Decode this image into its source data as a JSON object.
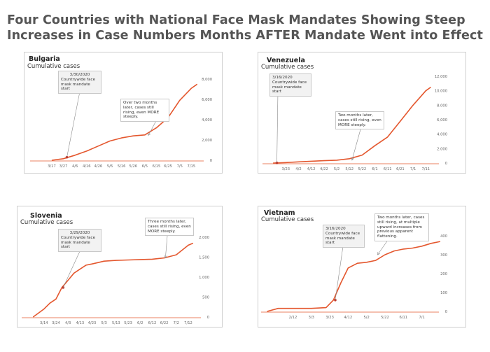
{
  "title": {
    "line1": "Four Countries with National Face Mask Mandates Showing Steep",
    "line2": "Increases in Case Numbers Months AFTER Mandate Went into Effect"
  },
  "colors": {
    "series": "#e4572e",
    "axis": "#e4572e",
    "pointer": "#888888",
    "title": "#555555"
  },
  "chart_data": [
    {
      "type": "line",
      "country": "Bulgaria",
      "subtitle": "Cumulative cases",
      "x_tick_labels": [
        "3/17",
        "3/27",
        "4/6",
        "4/16",
        "4/26",
        "5/6",
        "5/16",
        "5/26",
        "6/5",
        "6/15",
        "6/25",
        "7/5",
        "7/15"
      ],
      "y_tick_labels": [
        "0",
        "2,000",
        "4,000",
        "6,000",
        "8,000"
      ],
      "ylim": [
        0,
        8000
      ],
      "x": [
        0,
        1,
        2,
        3,
        4,
        5,
        6,
        7,
        8,
        9,
        10,
        11,
        12,
        12.5
      ],
      "values": [
        0,
        150,
        500,
        900,
        1400,
        1900,
        2200,
        2400,
        2500,
        3200,
        4200,
        5900,
        7100,
        7500
      ],
      "mandate_label_date": "3/30/2020",
      "mandate_label": "Countrywide face mask mandate start",
      "mandate_x": 1.3,
      "mandate_y": 300,
      "note": "Over two months later, cases still rising, even MORE steeply.",
      "note_x": 8.3,
      "note_y": 2450
    },
    {
      "type": "line",
      "country": "Venezuela",
      "subtitle": "Cumulative cases",
      "x_tick_labels": [
        "3/23",
        "4/2",
        "4/12",
        "4/22",
        "5/2",
        "5/12",
        "5/22",
        "6/1",
        "6/11",
        "6/21",
        "7/1",
        "7/11"
      ],
      "y_tick_labels": [
        "0",
        "2,000",
        "4,000",
        "6,000",
        "8,000",
        "10,000",
        "12,000"
      ],
      "ylim": [
        0,
        12000
      ],
      "x": [
        -1.0,
        0,
        1,
        2,
        3,
        4,
        5,
        6,
        7,
        8,
        9,
        10,
        11,
        11.4
      ],
      "values": [
        0,
        70,
        160,
        250,
        330,
        400,
        600,
        1100,
        2400,
        3600,
        5800,
        8000,
        10000,
        10500
      ],
      "mandate_label_date": "3/16/2020",
      "mandate_label": "Countrywide face mask mandate start",
      "mandate_x": -0.7,
      "mandate_y": 30,
      "note": "Two months later, cases still rising, even MORE steeply.",
      "note_x": 5.2,
      "note_y": 400
    },
    {
      "type": "line",
      "country": "Slovenia",
      "subtitle": "Cumulative cases",
      "x_tick_labels": [
        "3/14",
        "3/24",
        "4/3",
        "4/13",
        "4/23",
        "5/3",
        "5/13",
        "5/23",
        "6/2",
        "6/12",
        "6/22",
        "7/2",
        "7/12"
      ],
      "y_tick_labels": [
        "0",
        "500",
        "1,000",
        "1,500",
        "2,000"
      ],
      "ylim": [
        0,
        2000
      ],
      "x": [
        -0.9,
        0,
        0.5,
        1,
        1.5,
        2,
        2.5,
        3,
        3.5,
        4,
        5,
        6,
        7,
        8,
        9,
        10,
        11,
        12,
        12.4
      ],
      "values": [
        0,
        200,
        350,
        450,
        740,
        920,
        1100,
        1200,
        1300,
        1330,
        1400,
        1420,
        1430,
        1440,
        1450,
        1480,
        1560,
        1800,
        1850
      ],
      "mandate_label_date": "3/29/2020",
      "mandate_label": "Countrywide face mask mandate start",
      "mandate_x": 1.6,
      "mandate_y": 740,
      "note": "Three months later, cases still rising, even MORE steeply.",
      "note_x": 10.1,
      "note_y": 1480
    },
    {
      "type": "line",
      "country": "Vietnam",
      "subtitle": "Cumulative cases",
      "x_tick_labels": [
        "2/12",
        "3/3",
        "3/23",
        "4/12",
        "5/2",
        "5/22",
        "6/11",
        "7/1"
      ],
      "y_tick_labels": [
        "0",
        "100",
        "200",
        "300",
        "400"
      ],
      "ylim": [
        0,
        400
      ],
      "x": [
        -1.4,
        -0.8,
        0,
        1,
        1.8,
        2.2,
        2.6,
        3,
        3.5,
        4,
        4.5,
        5,
        5.5,
        6,
        6.5,
        7,
        7.5,
        8
      ],
      "values": [
        0,
        16,
        16,
        16,
        20,
        60,
        150,
        230,
        255,
        260,
        270,
        300,
        320,
        330,
        335,
        345,
        360,
        370
      ],
      "mandate_label_date": "3/16/2020",
      "mandate_label": "Countrywide face mask mandate start",
      "mandate_x": 2.3,
      "mandate_y": 60,
      "note": "Two months later, cases still rising, at multiple upward increases from previous apparent flattening.",
      "note_x": 4.6,
      "note_y": 300
    }
  ]
}
